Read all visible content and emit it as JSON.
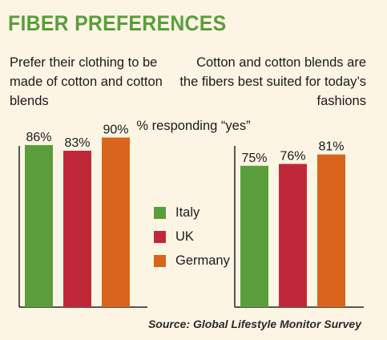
{
  "title": "FIBER PREFERENCES",
  "subtitle_left": "Prefer their clothing to be made of cotton and cotton blends",
  "subtitle_right": "Cotton and cotton blends are the fibers best suited for today’s fashions",
  "responding": "% responding “yes”",
  "source": "Source: Global Lifestyle Monitor Survey",
  "colors": {
    "Italy": "#5a9e3c",
    "UK": "#c0283a",
    "Germany": "#d8651b",
    "axis": "#222222"
  },
  "chart_data": [
    {
      "type": "bar",
      "title": "Prefer their clothing to be made of cotton and cotton blends",
      "categories": [
        "Italy",
        "UK",
        "Germany"
      ],
      "values": [
        86,
        83,
        90
      ],
      "labels": [
        "86%",
        "83%",
        "90%"
      ],
      "ylim": [
        0,
        100
      ],
      "legend": "center"
    },
    {
      "type": "bar",
      "title": "Cotton and cotton blends are the fibers best suited for today’s fashions",
      "categories": [
        "Italy",
        "UK",
        "Germany"
      ],
      "values": [
        75,
        76,
        81
      ],
      "labels": [
        "75%",
        "76%",
        "81%"
      ],
      "ylim": [
        0,
        100
      ],
      "legend": "center"
    }
  ],
  "legend": [
    {
      "label": "Italy",
      "color": "#5a9e3c"
    },
    {
      "label": "UK",
      "color": "#c0283a"
    },
    {
      "label": "Germany",
      "color": "#d8651b"
    }
  ]
}
